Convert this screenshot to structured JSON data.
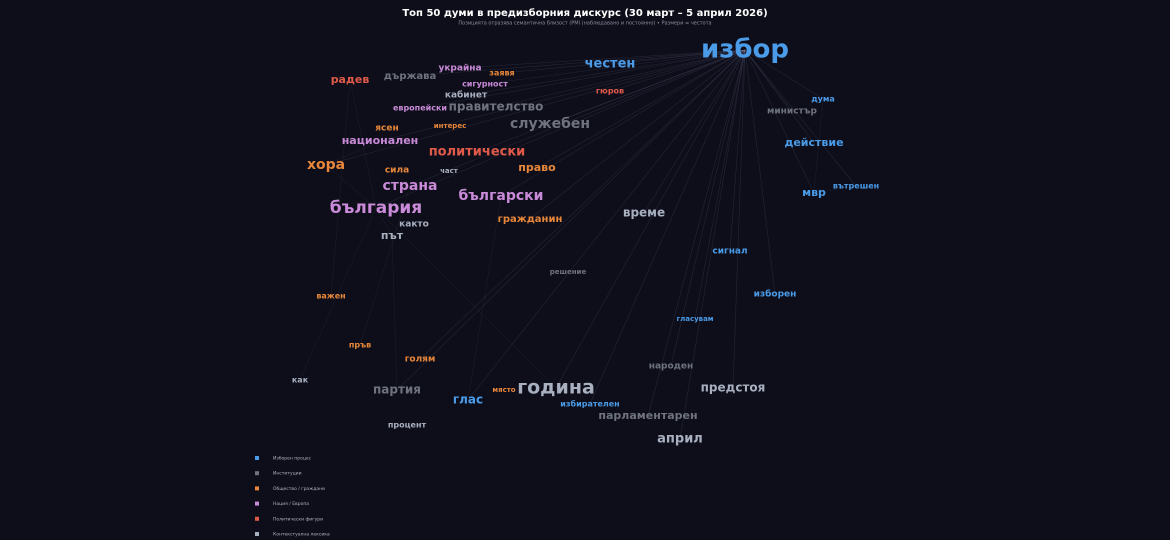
{
  "title": "Топ 50 думи в предизборния дискурс  (30 март – 5 април 2026)",
  "subtitle": "Позицията отразява семантична близост (PMI (наблюдавано и постоянно)  •  Размери = честота",
  "legend": [
    {
      "label": "Изборен процес",
      "color": "#4a9be8"
    },
    {
      "label": "Институции",
      "color": "#6e737e"
    },
    {
      "label": "Общество / граждани",
      "color": "#e8873a"
    },
    {
      "label": "Нация / Европа",
      "color": "#c98ad8"
    },
    {
      "label": "Политически фигури",
      "color": "#e05a4a"
    },
    {
      "label": "Контекстуална лексика",
      "color": "#a8b0c0"
    }
  ],
  "nodes": [
    {
      "label": "избор",
      "color": "#4a9be8"
    },
    {
      "label": "честен",
      "color": "#4a9be8"
    },
    {
      "label": "радев",
      "color": "#e05a4a"
    },
    {
      "label": "държава",
      "color": "#6e737e"
    },
    {
      "label": "украйна",
      "color": "#c98ad8"
    },
    {
      "label": "заявя",
      "color": "#e8873a"
    },
    {
      "label": "сигурност",
      "color": "#c98ad8"
    },
    {
      "label": "кабинет",
      "color": "#a8b0c0"
    },
    {
      "label": "гюров",
      "color": "#e05a4a"
    },
    {
      "label": "европейски",
      "color": "#c98ad8"
    },
    {
      "label": "правителство",
      "color": "#6e737e"
    },
    {
      "label": "дума",
      "color": "#4a9be8"
    },
    {
      "label": "министър",
      "color": "#6e737e"
    },
    {
      "label": "ясен",
      "color": "#e8873a"
    },
    {
      "label": "интерес",
      "color": "#e8873a"
    },
    {
      "label": "служебен",
      "color": "#6e737e"
    },
    {
      "label": "национален",
      "color": "#c98ad8"
    },
    {
      "label": "политически",
      "color": "#e05a4a"
    },
    {
      "label": "действие",
      "color": "#4a9be8"
    },
    {
      "label": "хора",
      "color": "#e8873a"
    },
    {
      "label": "сила",
      "color": "#e8873a"
    },
    {
      "label": "част",
      "color": "#a8b0c0"
    },
    {
      "label": "право",
      "color": "#e8873a"
    },
    {
      "label": "страна",
      "color": "#c98ad8"
    },
    {
      "label": "български",
      "color": "#c98ad8"
    },
    {
      "label": "мвр",
      "color": "#4a9be8"
    },
    {
      "label": "вътрешен",
      "color": "#4a9be8"
    },
    {
      "label": "българия",
      "color": "#c98ad8"
    },
    {
      "label": "гражданин",
      "color": "#e8873a"
    },
    {
      "label": "време",
      "color": "#a8b0c0"
    },
    {
      "label": "както",
      "color": "#a8b0c0"
    },
    {
      "label": "път",
      "color": "#a8b0c0"
    },
    {
      "label": "сигнал",
      "color": "#4a9be8"
    },
    {
      "label": "решение",
      "color": "#6e737e"
    },
    {
      "label": "изборен",
      "color": "#4a9be8"
    },
    {
      "label": "важен",
      "color": "#e8873a"
    },
    {
      "label": "гласувам",
      "color": "#4a9be8"
    },
    {
      "label": "пръв",
      "color": "#e8873a"
    },
    {
      "label": "голям",
      "color": "#e8873a"
    },
    {
      "label": "народен",
      "color": "#6e737e"
    },
    {
      "label": "как",
      "color": "#a8b0c0"
    },
    {
      "label": "партия",
      "color": "#6e737e"
    },
    {
      "label": "година",
      "color": "#a8b0c0"
    },
    {
      "label": "място",
      "color": "#e8873a"
    },
    {
      "label": "предстоя",
      "color": "#a8b0c0"
    },
    {
      "label": "глас",
      "color": "#4a9be8"
    },
    {
      "label": "избирателен",
      "color": "#4a9be8"
    },
    {
      "label": "парламентарен",
      "color": "#6e737e"
    },
    {
      "label": "април",
      "color": "#a8b0c0"
    },
    {
      "label": "процент",
      "color": "#a8b0c0"
    }
  ]
}
